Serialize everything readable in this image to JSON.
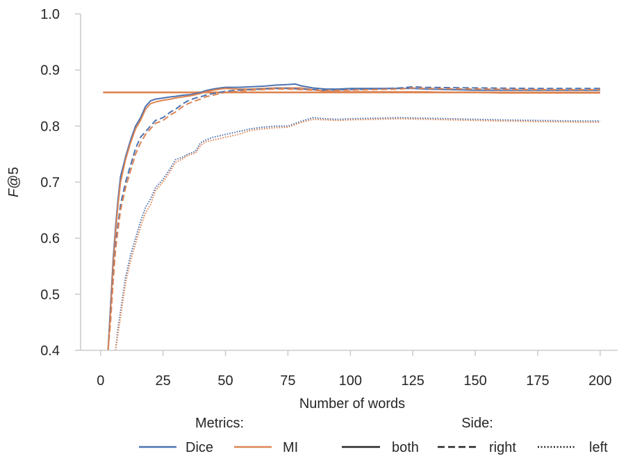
{
  "chart_data": {
    "type": "line",
    "title": "",
    "xlabel": "Number of words",
    "ylabel_prefix": "F",
    "ylabel_suffix": "@5",
    "xlim": [
      -8,
      207
    ],
    "ylim": [
      0.4,
      1.0
    ],
    "xticks": [
      0,
      25,
      50,
      75,
      100,
      125,
      150,
      175,
      200
    ],
    "yticks": [
      0.4,
      0.5,
      0.6,
      0.7,
      0.8,
      0.9,
      1.0
    ],
    "ytick_labels": [
      "0.4",
      "0.5",
      "0.6",
      "0.7",
      "0.8",
      "0.9",
      "1.0"
    ],
    "grid": false,
    "legend": {
      "placement": "bottom",
      "metrics_title": "Metrics:",
      "side_title": "Side:",
      "metrics": [
        {
          "label": "Dice",
          "color": "#4c72b0"
        },
        {
          "label": "MI",
          "color": "#dd8452"
        }
      ],
      "sides": [
        {
          "label": "both",
          "style": "solid"
        },
        {
          "label": "right",
          "style": "dashed"
        },
        {
          "label": "left",
          "style": "dotted"
        }
      ]
    },
    "series": [
      {
        "metric": "MI",
        "side": "baseline",
        "color": "#dd8452",
        "style": "solid",
        "x": [
          1,
          200
        ],
        "y": [
          0.86,
          0.86
        ]
      },
      {
        "metric": "Dice",
        "side": "both",
        "color": "#4c72b0",
        "style": "solid",
        "x": [
          3,
          4,
          5,
          6,
          7,
          8,
          10,
          12,
          14,
          16,
          18,
          20,
          22,
          25,
          28,
          30,
          33,
          36,
          38,
          40,
          42,
          45,
          48,
          50,
          55,
          60,
          65,
          70,
          75,
          78,
          80,
          85,
          90,
          95,
          100,
          110,
          120,
          125,
          130,
          140,
          150,
          160,
          175,
          190,
          200
        ],
        "y": [
          0.4,
          0.48,
          0.56,
          0.62,
          0.67,
          0.71,
          0.745,
          0.775,
          0.8,
          0.815,
          0.835,
          0.845,
          0.848,
          0.85,
          0.852,
          0.853,
          0.855,
          0.856,
          0.858,
          0.86,
          0.863,
          0.866,
          0.868,
          0.869,
          0.869,
          0.87,
          0.871,
          0.873,
          0.874,
          0.875,
          0.872,
          0.868,
          0.866,
          0.866,
          0.867,
          0.867,
          0.867,
          0.867,
          0.866,
          0.865,
          0.864,
          0.864,
          0.864,
          0.864,
          0.864
        ]
      },
      {
        "metric": "MI",
        "side": "both",
        "color": "#dd8452",
        "style": "solid",
        "x": [
          3,
          4,
          5,
          6,
          7,
          8,
          10,
          12,
          14,
          16,
          18,
          20,
          22,
          25,
          28,
          30,
          33,
          36,
          38,
          40,
          42,
          45,
          48,
          50,
          55,
          60,
          65,
          70,
          75,
          80,
          85,
          90,
          95,
          100,
          110,
          120,
          130,
          140,
          150,
          160,
          175,
          190,
          200
        ],
        "y": [
          0.4,
          0.47,
          0.55,
          0.61,
          0.66,
          0.7,
          0.74,
          0.77,
          0.795,
          0.81,
          0.83,
          0.84,
          0.843,
          0.846,
          0.848,
          0.85,
          0.852,
          0.854,
          0.856,
          0.858,
          0.861,
          0.864,
          0.866,
          0.867,
          0.866,
          0.866,
          0.867,
          0.868,
          0.868,
          0.868,
          0.865,
          0.862,
          0.861,
          0.861,
          0.861,
          0.861,
          0.861,
          0.86,
          0.86,
          0.859,
          0.859,
          0.859,
          0.859
        ]
      },
      {
        "metric": "Dice",
        "side": "right",
        "color": "#4c72b0",
        "style": "dashed",
        "x": [
          3,
          4,
          5,
          6,
          8,
          10,
          12,
          14,
          16,
          18,
          20,
          22,
          25,
          28,
          30,
          33,
          35,
          38,
          40,
          42,
          45,
          50,
          55,
          60,
          65,
          70,
          75,
          80,
          85,
          90,
          100,
          110,
          120,
          125,
          130,
          150,
          175,
          200
        ],
        "y": [
          0.4,
          0.46,
          0.53,
          0.59,
          0.66,
          0.7,
          0.73,
          0.76,
          0.78,
          0.79,
          0.8,
          0.81,
          0.815,
          0.825,
          0.83,
          0.84,
          0.845,
          0.85,
          0.852,
          0.855,
          0.858,
          0.862,
          0.864,
          0.865,
          0.866,
          0.867,
          0.867,
          0.866,
          0.865,
          0.864,
          0.865,
          0.866,
          0.868,
          0.87,
          0.869,
          0.868,
          0.867,
          0.867
        ]
      },
      {
        "metric": "MI",
        "side": "right",
        "color": "#dd8452",
        "style": "dashed",
        "x": [
          3,
          4,
          5,
          6,
          8,
          10,
          12,
          14,
          16,
          18,
          20,
          22,
          25,
          28,
          30,
          33,
          35,
          38,
          40,
          42,
          45,
          50,
          55,
          60,
          65,
          70,
          75,
          80,
          85,
          90,
          100,
          110,
          120,
          125,
          130,
          150,
          175,
          200
        ],
        "y": [
          0.4,
          0.45,
          0.52,
          0.58,
          0.65,
          0.69,
          0.72,
          0.75,
          0.77,
          0.785,
          0.795,
          0.805,
          0.81,
          0.82,
          0.825,
          0.835,
          0.84,
          0.845,
          0.848,
          0.852,
          0.855,
          0.86,
          0.862,
          0.864,
          0.865,
          0.866,
          0.866,
          0.865,
          0.864,
          0.863,
          0.864,
          0.865,
          0.866,
          0.868,
          0.867,
          0.866,
          0.865,
          0.865
        ]
      },
      {
        "metric": "Dice",
        "side": "left",
        "color": "#4c72b0",
        "style": "dotted",
        "x": [
          6,
          7,
          8,
          9,
          10,
          12,
          14,
          16,
          18,
          20,
          22,
          25,
          28,
          30,
          33,
          35,
          38,
          40,
          42,
          45,
          50,
          55,
          60,
          65,
          70,
          75,
          80,
          85,
          90,
          95,
          100,
          110,
          120,
          130,
          140,
          150,
          160,
          175,
          190,
          200
        ],
        "y": [
          0.4,
          0.44,
          0.47,
          0.5,
          0.53,
          0.57,
          0.6,
          0.63,
          0.655,
          0.67,
          0.69,
          0.705,
          0.725,
          0.74,
          0.745,
          0.75,
          0.755,
          0.77,
          0.775,
          0.78,
          0.785,
          0.79,
          0.795,
          0.798,
          0.8,
          0.8,
          0.808,
          0.815,
          0.813,
          0.812,
          0.813,
          0.814,
          0.815,
          0.814,
          0.813,
          0.812,
          0.811,
          0.81,
          0.809,
          0.809
        ]
      },
      {
        "metric": "MI",
        "side": "left",
        "color": "#dd8452",
        "style": "dotted",
        "x": [
          6,
          7,
          8,
          9,
          10,
          12,
          14,
          16,
          18,
          20,
          22,
          25,
          28,
          30,
          33,
          35,
          38,
          40,
          42,
          45,
          50,
          55,
          60,
          65,
          70,
          75,
          80,
          85,
          90,
          95,
          100,
          110,
          120,
          130,
          140,
          150,
          160,
          175,
          190,
          200
        ],
        "y": [
          0.4,
          0.43,
          0.46,
          0.49,
          0.52,
          0.56,
          0.59,
          0.62,
          0.645,
          0.66,
          0.685,
          0.7,
          0.72,
          0.735,
          0.742,
          0.748,
          0.752,
          0.765,
          0.772,
          0.775,
          0.78,
          0.785,
          0.792,
          0.795,
          0.797,
          0.798,
          0.806,
          0.812,
          0.811,
          0.81,
          0.811,
          0.812,
          0.813,
          0.812,
          0.811,
          0.81,
          0.809,
          0.808,
          0.807,
          0.807
        ]
      }
    ]
  }
}
